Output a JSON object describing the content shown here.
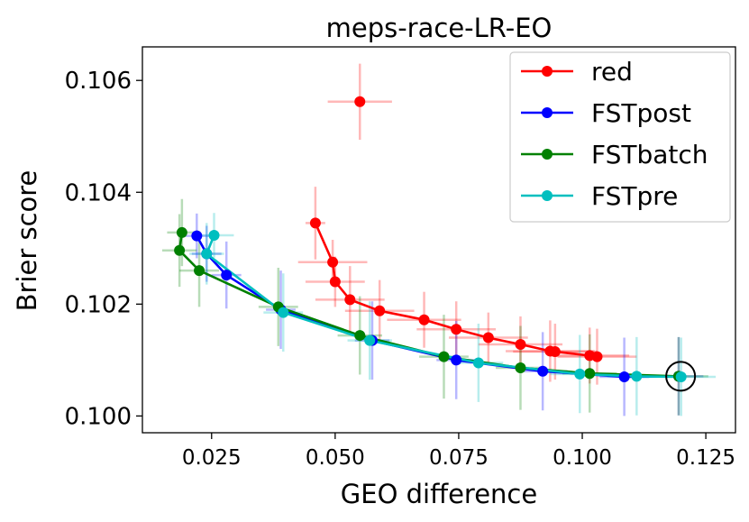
{
  "chart_data": {
    "type": "line",
    "title": "meps-race-LR-EO",
    "xlabel": "GEO difference",
    "ylabel": "Brier score",
    "xlim": [
      0.011,
      0.131
    ],
    "ylim": [
      0.0997,
      0.1066
    ],
    "xticks": [
      0.025,
      0.05,
      0.075,
      0.1,
      0.125
    ],
    "xtick_labels": [
      "0.025",
      "0.050",
      "0.075",
      "0.100",
      "0.125"
    ],
    "yticks": [
      0.1,
      0.102,
      0.104,
      0.106
    ],
    "ytick_labels": [
      "0.100",
      "0.102",
      "0.104",
      "0.106"
    ],
    "grid": false,
    "legend_position": "top-right",
    "marker": {
      "x": 0.1199,
      "y": 0.10071,
      "shape": "circle"
    },
    "series": [
      {
        "name": "red",
        "color": "#ff0000",
        "x": [
          0.046,
          0.0495,
          0.05,
          0.053,
          0.059,
          0.068,
          0.0745,
          0.081,
          0.0875,
          0.0935,
          0.0945,
          0.1015,
          0.103
        ],
        "y": [
          0.10345,
          0.10275,
          0.1024,
          0.10208,
          0.10188,
          0.10172,
          0.10155,
          0.1014,
          0.10128,
          0.10116,
          0.10115,
          0.10108,
          0.10106
        ],
        "xerr": [
          0.002,
          0.007,
          0.006,
          0.007,
          0.007,
          0.0075,
          0.008,
          0.008,
          0.0085,
          0.009,
          0.0085,
          0.008,
          0.008
        ],
        "yerr": [
          0.00065,
          0.0004,
          0.00045,
          0.0006,
          0.00055,
          0.0005,
          0.0005,
          0.00045,
          0.0005,
          0.00055,
          0.0005,
          0.0005,
          0.0005
        ],
        "outlier": {
          "x": 0.055,
          "y": 0.10562,
          "xerr": 0.0065,
          "yerr": 0.00068
        }
      },
      {
        "name": "FSTpost",
        "color": "#0000ff",
        "x": [
          0.022,
          0.024,
          0.028,
          0.039,
          0.0575,
          0.0745,
          0.092,
          0.1085,
          0.1195
        ],
        "y": [
          0.10322,
          0.1029,
          0.10252,
          0.1019,
          0.10135,
          0.101,
          0.1008,
          0.1007,
          0.10071
        ],
        "xerr": [
          0.0035,
          0.003,
          0.003,
          0.003,
          0.0035,
          0.004,
          0.005,
          0.005,
          0.005
        ],
        "yerr": [
          0.0004,
          0.0005,
          0.0006,
          0.0007,
          0.0007,
          0.0007,
          0.0007,
          0.0007,
          0.0007
        ]
      },
      {
        "name": "FSTbatch",
        "color": "#008000",
        "x": [
          0.019,
          0.0185,
          0.0225,
          0.0385,
          0.055,
          0.072,
          0.0875,
          0.1015,
          0.1195
        ],
        "y": [
          0.10328,
          0.10296,
          0.1026,
          0.10195,
          0.10144,
          0.10106,
          0.10086,
          0.10076,
          0.10071
        ],
        "xerr": [
          0.003,
          0.0035,
          0.004,
          0.004,
          0.0045,
          0.005,
          0.005,
          0.0055,
          0.006
        ],
        "yerr": [
          0.0006,
          0.00065,
          0.00065,
          0.0007,
          0.0007,
          0.00075,
          0.00075,
          0.0007,
          0.0007
        ]
      },
      {
        "name": "FSTpre",
        "color": "#00bfbf",
        "x": [
          0.0255,
          0.024,
          0.0395,
          0.057,
          0.079,
          0.0995,
          0.111,
          0.12
        ],
        "y": [
          0.10323,
          0.1029,
          0.10185,
          0.10135,
          0.10095,
          0.10075,
          0.10071,
          0.1007
        ],
        "xerr": [
          0.004,
          0.0035,
          0.004,
          0.0045,
          0.005,
          0.006,
          0.006,
          0.007
        ],
        "yerr": [
          0.0004,
          0.00055,
          0.0007,
          0.0007,
          0.0007,
          0.0007,
          0.0007,
          0.0007
        ]
      }
    ]
  }
}
